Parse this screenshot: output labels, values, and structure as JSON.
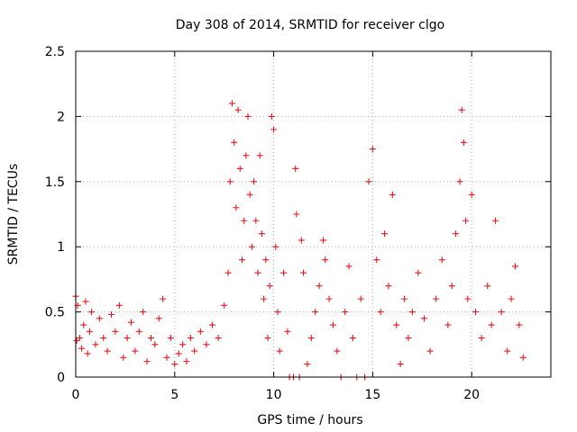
{
  "chart_data": {
    "type": "scatter",
    "title": "Day 308 of 2014, SRMTID for receiver clgo",
    "xlabel": "GPS time / hours",
    "ylabel": "SRMTID / TECUs",
    "xlim": [
      0,
      24
    ],
    "ylim": [
      0,
      2.5
    ],
    "xticks": [
      0,
      5,
      10,
      15,
      20
    ],
    "yticks": [
      0,
      0.5,
      1,
      1.5,
      2,
      2.5
    ],
    "xtick_labels": [
      "0",
      "5",
      "10",
      "15",
      "20"
    ],
    "ytick_labels": [
      "0",
      "0.5",
      "1",
      "1.5",
      "2",
      "2.5"
    ],
    "grid": true,
    "marker": "+",
    "color": "#e8171c",
    "series": [
      {
        "name": "SRMTID",
        "points": [
          [
            0.0,
            0.62
          ],
          [
            0.05,
            0.28
          ],
          [
            0.1,
            0.55
          ],
          [
            0.2,
            0.3
          ],
          [
            0.3,
            0.22
          ],
          [
            0.4,
            0.4
          ],
          [
            0.5,
            0.58
          ],
          [
            0.6,
            0.18
          ],
          [
            0.7,
            0.35
          ],
          [
            0.8,
            0.5
          ],
          [
            1.0,
            0.25
          ],
          [
            1.2,
            0.45
          ],
          [
            1.4,
            0.3
          ],
          [
            1.6,
            0.2
          ],
          [
            1.8,
            0.48
          ],
          [
            2.0,
            0.35
          ],
          [
            2.2,
            0.55
          ],
          [
            2.4,
            0.15
          ],
          [
            2.6,
            0.3
          ],
          [
            2.8,
            0.42
          ],
          [
            3.0,
            0.2
          ],
          [
            3.2,
            0.35
          ],
          [
            3.4,
            0.5
          ],
          [
            3.6,
            0.12
          ],
          [
            3.8,
            0.3
          ],
          [
            4.0,
            0.25
          ],
          [
            4.2,
            0.45
          ],
          [
            4.4,
            0.6
          ],
          [
            4.6,
            0.15
          ],
          [
            4.8,
            0.3
          ],
          [
            5.0,
            0.1
          ],
          [
            5.2,
            0.18
          ],
          [
            5.4,
            0.25
          ],
          [
            5.6,
            0.12
          ],
          [
            5.8,
            0.3
          ],
          [
            6.0,
            0.2
          ],
          [
            6.3,
            0.35
          ],
          [
            6.6,
            0.25
          ],
          [
            6.9,
            0.4
          ],
          [
            7.2,
            0.3
          ],
          [
            7.5,
            0.55
          ],
          [
            7.7,
            0.8
          ],
          [
            7.8,
            1.5
          ],
          [
            7.9,
            2.1
          ],
          [
            8.0,
            1.8
          ],
          [
            8.1,
            1.3
          ],
          [
            8.2,
            2.05
          ],
          [
            8.3,
            1.6
          ],
          [
            8.4,
            0.9
          ],
          [
            8.5,
            1.2
          ],
          [
            8.6,
            1.7
          ],
          [
            8.7,
            2.0
          ],
          [
            8.8,
            1.4
          ],
          [
            8.9,
            1.0
          ],
          [
            9.0,
            1.5
          ],
          [
            9.1,
            1.2
          ],
          [
            9.2,
            0.8
          ],
          [
            9.3,
            1.7
          ],
          [
            9.4,
            1.1
          ],
          [
            9.5,
            0.6
          ],
          [
            9.6,
            0.9
          ],
          [
            9.7,
            0.3
          ],
          [
            9.8,
            0.7
          ],
          [
            9.9,
            2.0
          ],
          [
            10.0,
            1.9
          ],
          [
            10.1,
            1.0
          ],
          [
            10.2,
            0.5
          ],
          [
            10.3,
            0.2
          ],
          [
            10.5,
            0.8
          ],
          [
            10.7,
            0.35
          ],
          [
            10.8,
            0.0
          ],
          [
            11.0,
            0.0
          ],
          [
            11.1,
            1.6
          ],
          [
            11.15,
            1.25
          ],
          [
            11.3,
            0.0
          ],
          [
            11.4,
            1.05
          ],
          [
            11.5,
            0.8
          ],
          [
            11.7,
            0.1
          ],
          [
            11.9,
            0.3
          ],
          [
            12.1,
            0.5
          ],
          [
            12.3,
            0.7
          ],
          [
            12.5,
            1.05
          ],
          [
            12.6,
            0.9
          ],
          [
            12.8,
            0.6
          ],
          [
            13.0,
            0.4
          ],
          [
            13.2,
            0.2
          ],
          [
            13.4,
            0.0
          ],
          [
            13.6,
            0.5
          ],
          [
            13.8,
            0.85
          ],
          [
            14.0,
            0.3
          ],
          [
            14.2,
            0.0
          ],
          [
            14.4,
            0.6
          ],
          [
            14.6,
            0.0
          ],
          [
            14.8,
            1.5
          ],
          [
            15.0,
            1.75
          ],
          [
            15.2,
            0.9
          ],
          [
            15.4,
            0.5
          ],
          [
            15.6,
            1.1
          ],
          [
            15.8,
            0.7
          ],
          [
            16.0,
            1.4
          ],
          [
            16.2,
            0.4
          ],
          [
            16.4,
            0.1
          ],
          [
            16.6,
            0.6
          ],
          [
            16.8,
            0.3
          ],
          [
            17.0,
            0.5
          ],
          [
            17.3,
            0.8
          ],
          [
            17.6,
            0.45
          ],
          [
            17.9,
            0.2
          ],
          [
            18.2,
            0.6
          ],
          [
            18.5,
            0.9
          ],
          [
            18.8,
            0.4
          ],
          [
            19.0,
            0.7
          ],
          [
            19.2,
            1.1
          ],
          [
            19.4,
            1.5
          ],
          [
            19.5,
            2.05
          ],
          [
            19.6,
            1.8
          ],
          [
            19.7,
            1.2
          ],
          [
            19.8,
            0.6
          ],
          [
            20.0,
            1.4
          ],
          [
            20.2,
            0.5
          ],
          [
            20.5,
            0.3
          ],
          [
            20.8,
            0.7
          ],
          [
            21.0,
            0.4
          ],
          [
            21.2,
            1.2
          ],
          [
            21.5,
            0.5
          ],
          [
            21.8,
            0.2
          ],
          [
            22.0,
            0.6
          ],
          [
            22.2,
            0.85
          ],
          [
            22.4,
            0.4
          ],
          [
            22.6,
            0.15
          ]
        ]
      }
    ]
  }
}
